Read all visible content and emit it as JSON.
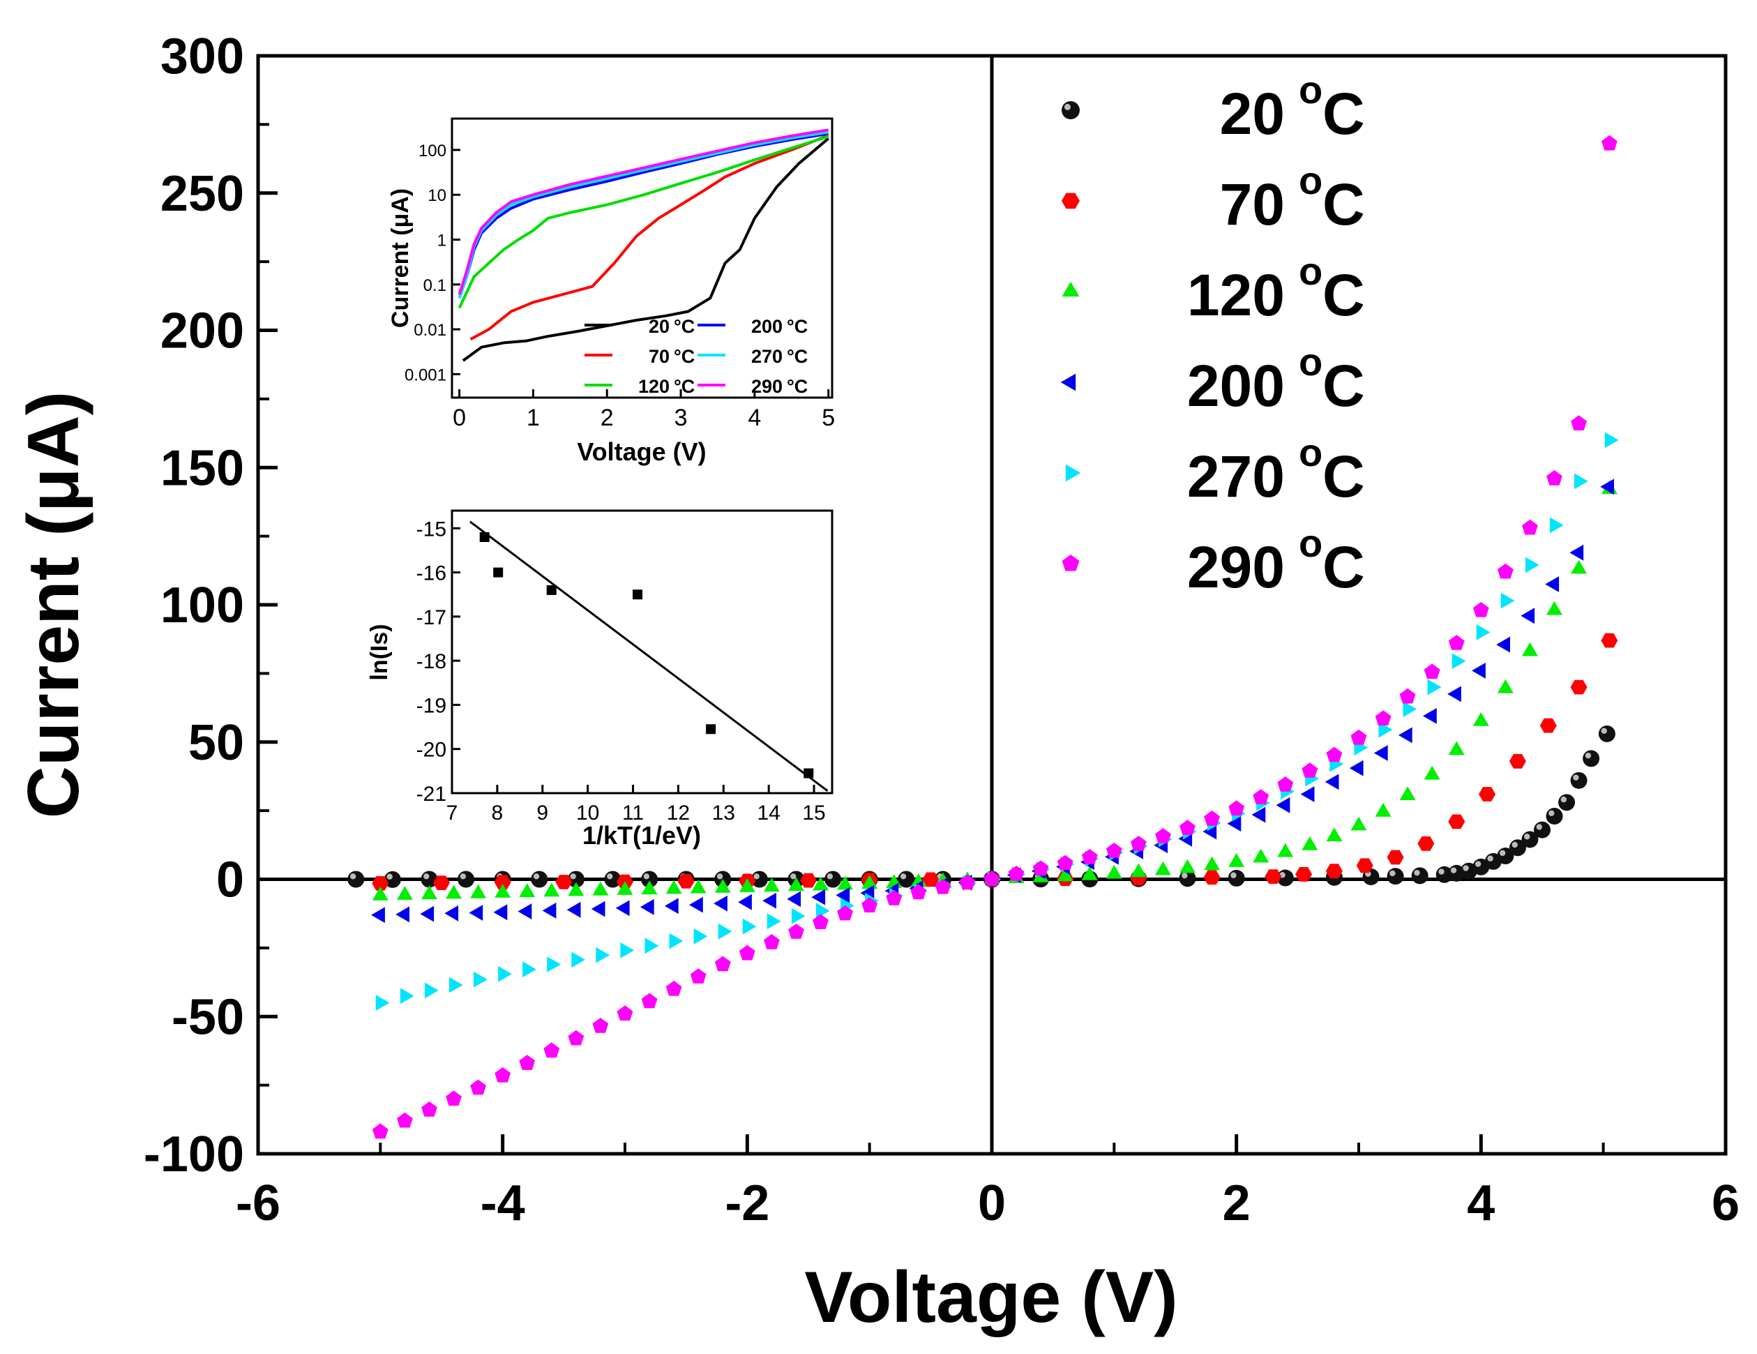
{
  "chart_data": [
    {
      "id": "main",
      "type": "scatter",
      "title": "",
      "xlabel": "Voltage (V)",
      "ylabel": "Current (μA)",
      "xlim": [
        -6,
        6
      ],
      "ylim": [
        -100,
        300
      ],
      "xticks": [
        -6,
        -4,
        -2,
        0,
        2,
        4,
        6
      ],
      "yticks": [
        -100,
        -50,
        0,
        50,
        100,
        150,
        200,
        250,
        300
      ],
      "legend_position": "top-right",
      "series": [
        {
          "name": "20 °C",
          "label": "20",
          "unit": "°C",
          "marker": "sphere",
          "color": "#000000",
          "x": [
            -5.2,
            -4.9,
            -4.6,
            -4.3,
            -4.0,
            -3.7,
            -3.4,
            -3.1,
            -2.8,
            -2.5,
            -2.2,
            -1.9,
            -1.6,
            -1.3,
            -1.0,
            -0.7,
            -0.4,
            0.0,
            0.4,
            0.8,
            1.2,
            1.6,
            2.0,
            2.4,
            2.8,
            3.1,
            3.3,
            3.5,
            3.7,
            3.8,
            3.9,
            4.0,
            4.1,
            4.2,
            4.3,
            4.4,
            4.5,
            4.6,
            4.7,
            4.8,
            4.9,
            5.03
          ],
          "y": [
            0,
            -0.1,
            0,
            0,
            0,
            0,
            0,
            0,
            0,
            0,
            0,
            0,
            0,
            0,
            0,
            0,
            0,
            0,
            0.1,
            0.1,
            0.2,
            0.3,
            0.4,
            0.5,
            0.7,
            0.9,
            1.1,
            1.3,
            1.7,
            2.2,
            3.0,
            4.5,
            6.5,
            8.5,
            11.5,
            14.5,
            18.0,
            23.0,
            28.0,
            36.0,
            44.0,
            53.0
          ]
        },
        {
          "name": "70 °C",
          "label": "70",
          "unit": "°C",
          "marker": "hexagon",
          "color": "#ff0000",
          "x": [
            -5.0,
            -4.5,
            -4.0,
            -3.5,
            -3.0,
            -2.5,
            -2.0,
            -1.5,
            -1.0,
            -0.5,
            0.0,
            0.6,
            1.2,
            1.8,
            2.3,
            2.55,
            2.8,
            3.05,
            3.3,
            3.55,
            3.8,
            4.05,
            4.3,
            4.55,
            4.8,
            5.05
          ],
          "y": [
            -1.5,
            -1.3,
            -1.1,
            -1.0,
            -0.9,
            -0.7,
            -0.6,
            -0.4,
            -0.3,
            -0.1,
            0.0,
            0.2,
            0.4,
            0.7,
            1.0,
            1.8,
            3.0,
            5.0,
            8.0,
            13.0,
            21.0,
            31.0,
            43.0,
            56.0,
            70.0,
            87.0
          ]
        },
        {
          "name": "120 °C",
          "label": "120",
          "unit": "°C",
          "marker": "triangle-up",
          "color": "#00ee00",
          "x": [
            -5.0,
            -4.8,
            -4.6,
            -4.4,
            -4.2,
            -4.0,
            -3.8,
            -3.6,
            -3.4,
            -3.2,
            -3.0,
            -2.8,
            -2.6,
            -2.4,
            -2.2,
            -2.0,
            -1.8,
            -1.6,
            -1.4,
            -1.2,
            -1.0,
            -0.8,
            -0.6,
            -0.4,
            -0.2,
            0.0,
            0.2,
            0.4,
            0.6,
            0.8,
            1.0,
            1.2,
            1.4,
            1.6,
            1.8,
            2.0,
            2.2,
            2.4,
            2.6,
            2.8,
            3.0,
            3.2,
            3.4,
            3.6,
            3.8,
            4.0,
            4.2,
            4.4,
            4.6,
            4.8,
            5.05
          ],
          "y": [
            -6.0,
            -5.8,
            -5.6,
            -5.4,
            -5.2,
            -5.0,
            -4.8,
            -4.6,
            -4.4,
            -4.2,
            -4.0,
            -3.8,
            -3.6,
            -3.4,
            -3.2,
            -3.0,
            -2.8,
            -2.6,
            -2.4,
            -2.1,
            -1.8,
            -1.5,
            -1.2,
            -0.9,
            -0.5,
            0.0,
            0.3,
            0.6,
            1.0,
            1.4,
            1.9,
            2.5,
            3.2,
            4.0,
            5.0,
            6.2,
            7.8,
            9.8,
            12.3,
            15.5,
            19.5,
            24.5,
            30.5,
            38.0,
            47.0,
            57.5,
            69.5,
            83.0,
            98.0,
            113.0,
            142.0
          ]
        },
        {
          "name": "200 °C",
          "label": "200",
          "unit": "°C",
          "marker": "triangle-left",
          "color": "#0000ee",
          "x": [
            -5.0,
            -4.8,
            -4.6,
            -4.4,
            -4.2,
            -4.0,
            -3.8,
            -3.6,
            -3.4,
            -3.2,
            -3.0,
            -2.8,
            -2.6,
            -2.4,
            -2.2,
            -2.0,
            -1.8,
            -1.6,
            -1.4,
            -1.2,
            -1.0,
            -0.8,
            -0.6,
            -0.4,
            -0.2,
            0.0,
            0.2,
            0.4,
            0.6,
            0.8,
            1.0,
            1.2,
            1.4,
            1.6,
            1.8,
            2.0,
            2.2,
            2.4,
            2.6,
            2.8,
            3.0,
            3.2,
            3.4,
            3.6,
            3.8,
            4.0,
            4.2,
            4.4,
            4.6,
            4.8,
            5.05
          ],
          "y": [
            -13.0,
            -12.8,
            -12.6,
            -12.4,
            -12.2,
            -12.0,
            -11.7,
            -11.4,
            -11.1,
            -10.8,
            -10.5,
            -10.1,
            -9.7,
            -9.3,
            -8.8,
            -8.3,
            -7.8,
            -7.2,
            -6.5,
            -5.8,
            -5.0,
            -4.2,
            -3.3,
            -2.3,
            -1.2,
            0.0,
            1.5,
            3.0,
            4.6,
            6.3,
            8.2,
            10.2,
            12.4,
            14.8,
            17.4,
            20.3,
            23.5,
            27.0,
            31.0,
            35.5,
            40.5,
            46.0,
            52.5,
            59.5,
            67.5,
            76.0,
            85.5,
            96.0,
            107.5,
            119.0,
            143.0
          ]
        },
        {
          "name": "270 °C",
          "label": "270",
          "unit": "°C",
          "marker": "triangle-right",
          "color": "#00e5ff",
          "x": [
            -5.0,
            -4.8,
            -4.6,
            -4.4,
            -4.2,
            -4.0,
            -3.8,
            -3.6,
            -3.4,
            -3.2,
            -3.0,
            -2.8,
            -2.6,
            -2.4,
            -2.2,
            -2.0,
            -1.8,
            -1.6,
            -1.4,
            -1.2,
            -1.0,
            -0.8,
            -0.6,
            -0.4,
            -0.2,
            0.0,
            0.2,
            0.4,
            0.6,
            0.8,
            1.0,
            1.2,
            1.4,
            1.6,
            1.8,
            2.0,
            2.2,
            2.4,
            2.6,
            2.8,
            3.0,
            3.2,
            3.4,
            3.6,
            3.8,
            4.0,
            4.2,
            4.4,
            4.6,
            4.8,
            5.05
          ],
          "y": [
            -45.0,
            -42.5,
            -40.5,
            -38.5,
            -36.5,
            -34.5,
            -32.8,
            -31.0,
            -29.3,
            -27.6,
            -25.9,
            -24.2,
            -22.5,
            -20.8,
            -19.0,
            -17.2,
            -15.3,
            -13.4,
            -11.5,
            -9.6,
            -7.8,
            -6.0,
            -4.3,
            -2.8,
            -1.3,
            0.0,
            1.8,
            3.6,
            5.5,
            7.5,
            9.7,
            12.0,
            14.6,
            17.4,
            20.5,
            24.0,
            27.8,
            32.0,
            36.7,
            42.0,
            48.0,
            54.5,
            62.0,
            70.0,
            79.5,
            90.0,
            101.5,
            114.5,
            129.0,
            145.0,
            160.0
          ]
        },
        {
          "name": "290 °C",
          "label": "290",
          "unit": "°C",
          "marker": "pentagon",
          "color": "#ff00ff",
          "x": [
            -5.0,
            -4.8,
            -4.6,
            -4.4,
            -4.2,
            -4.0,
            -3.8,
            -3.6,
            -3.4,
            -3.2,
            -3.0,
            -2.8,
            -2.6,
            -2.4,
            -2.2,
            -2.0,
            -1.8,
            -1.6,
            -1.4,
            -1.2,
            -1.0,
            -0.8,
            -0.6,
            -0.4,
            -0.2,
            0.0,
            0.2,
            0.4,
            0.6,
            0.8,
            1.0,
            1.2,
            1.4,
            1.6,
            1.8,
            2.0,
            2.2,
            2.4,
            2.6,
            2.8,
            3.0,
            3.2,
            3.4,
            3.6,
            3.8,
            4.0,
            4.2,
            4.4,
            4.6,
            4.8,
            5.05
          ],
          "y": [
            -92.0,
            -88.0,
            -84.0,
            -80.0,
            -76.0,
            -71.5,
            -67.0,
            -62.5,
            -58.0,
            -53.5,
            -49.0,
            -44.5,
            -40.0,
            -35.5,
            -31.0,
            -27.0,
            -23.0,
            -19.2,
            -15.7,
            -12.5,
            -9.6,
            -7.0,
            -4.8,
            -2.9,
            -1.3,
            0.0,
            1.9,
            3.8,
            5.8,
            8.0,
            10.3,
            12.8,
            15.6,
            18.6,
            22.0,
            25.7,
            29.8,
            34.4,
            39.5,
            45.2,
            51.5,
            58.5,
            66.5,
            75.5,
            86.0,
            98.0,
            112.0,
            128.0,
            146.0,
            166.0,
            268.0
          ]
        }
      ]
    },
    {
      "id": "inset-log",
      "type": "line",
      "xlabel": "Voltage (V)",
      "ylabel": "Current (μA)",
      "yscale": "log",
      "xlim": [
        -0.1,
        5.05
      ],
      "ylim": [
        0.0003,
        500
      ],
      "xticks": [
        0,
        1,
        2,
        3,
        4,
        5
      ],
      "yticks": [
        0.001,
        0.01,
        0.1,
        1,
        10,
        100
      ],
      "ytick_labels": [
        "0.001",
        "0.01",
        "0.1",
        "1",
        "10",
        "100"
      ],
      "legend_position": "bottom-right",
      "series": [
        {
          "name": "20 °C",
          "label": "20",
          "unit": "°C",
          "color": "#000000",
          "x": [
            0.05,
            0.3,
            0.6,
            0.9,
            1.2,
            1.6,
            2.0,
            2.4,
            2.8,
            3.1,
            3.4,
            3.6,
            3.8,
            4.0,
            4.3,
            4.6,
            5.0
          ],
          "y": [
            0.002,
            0.004,
            0.005,
            0.0055,
            0.007,
            0.009,
            0.012,
            0.016,
            0.02,
            0.025,
            0.05,
            0.3,
            0.6,
            3,
            15,
            50,
            180
          ]
        },
        {
          "name": "200 °C",
          "label": "200",
          "unit": "°C",
          "color": "#0000ff",
          "x": [
            0.0,
            0.1,
            0.2,
            0.3,
            0.5,
            0.7,
            1.0,
            1.5,
            2.0,
            2.5,
            3.0,
            3.5,
            4.0,
            4.5,
            5.0
          ],
          "y": [
            0.05,
            0.15,
            0.6,
            1.4,
            3,
            5,
            8,
            13,
            20,
            32,
            50,
            80,
            120,
            170,
            230
          ]
        },
        {
          "name": "70 °C",
          "label": "70",
          "unit": "°C",
          "color": "#ff0000",
          "x": [
            0.15,
            0.4,
            0.7,
            1.0,
            1.4,
            1.8,
            2.1,
            2.4,
            2.7,
            3.0,
            3.3,
            3.6,
            4.0,
            4.5,
            5.0
          ],
          "y": [
            0.006,
            0.01,
            0.025,
            0.04,
            0.06,
            0.09,
            0.3,
            1.2,
            3,
            6,
            12,
            25,
            50,
            100,
            210
          ]
        },
        {
          "name": "270 °C",
          "label": "270",
          "unit": "°C",
          "color": "#00e5ff",
          "x": [
            0.0,
            0.1,
            0.2,
            0.3,
            0.5,
            0.7,
            1.0,
            1.5,
            2.0,
            2.5,
            3.0,
            3.5,
            4.0,
            4.5,
            5.0
          ],
          "y": [
            0.05,
            0.15,
            0.7,
            1.6,
            3.5,
            6,
            9,
            15,
            23,
            36,
            55,
            85,
            130,
            185,
            250
          ]
        },
        {
          "name": "120 °C",
          "label": "120",
          "unit": "°C",
          "color": "#00dd00",
          "x": [
            0.0,
            0.2,
            0.4,
            0.6,
            0.8,
            1.0,
            1.2,
            1.5,
            2.0,
            2.5,
            3.0,
            3.5,
            4.0,
            4.5,
            5.0
          ],
          "y": [
            0.03,
            0.15,
            0.3,
            0.6,
            1,
            1.6,
            3,
            4,
            6,
            10,
            18,
            32,
            60,
            110,
            200
          ]
        },
        {
          "name": "290 °C",
          "label": "290",
          "unit": "°C",
          "color": "#ff00ff",
          "x": [
            0.0,
            0.1,
            0.2,
            0.3,
            0.5,
            0.7,
            1.0,
            1.5,
            2.0,
            2.5,
            3.0,
            3.5,
            4.0,
            4.5,
            5.0
          ],
          "y": [
            0.06,
            0.2,
            0.8,
            1.8,
            4,
            7,
            10,
            17,
            26,
            40,
            62,
            95,
            145,
            205,
            280
          ]
        }
      ]
    },
    {
      "id": "inset-arrhenius",
      "type": "scatter",
      "xlabel": "1/kT(1/eV)",
      "ylabel": "ln(Is)",
      "xlim": [
        7,
        15.4
      ],
      "ylim": [
        -21,
        -14.6
      ],
      "xticks": [
        7,
        8,
        9,
        10,
        11,
        12,
        13,
        14,
        15
      ],
      "yticks": [
        -15,
        -16,
        -17,
        -18,
        -19,
        -20,
        -21
      ],
      "points": {
        "x": [
          7.72,
          8.02,
          9.2,
          11.1,
          12.72,
          14.88
        ],
        "y": [
          -15.2,
          -16.0,
          -16.4,
          -16.5,
          -19.55,
          -20.55
        ]
      },
      "fit_line": {
        "x": [
          7.4,
          15.3
        ],
        "y": [
          -14.85,
          -20.95
        ]
      }
    }
  ]
}
